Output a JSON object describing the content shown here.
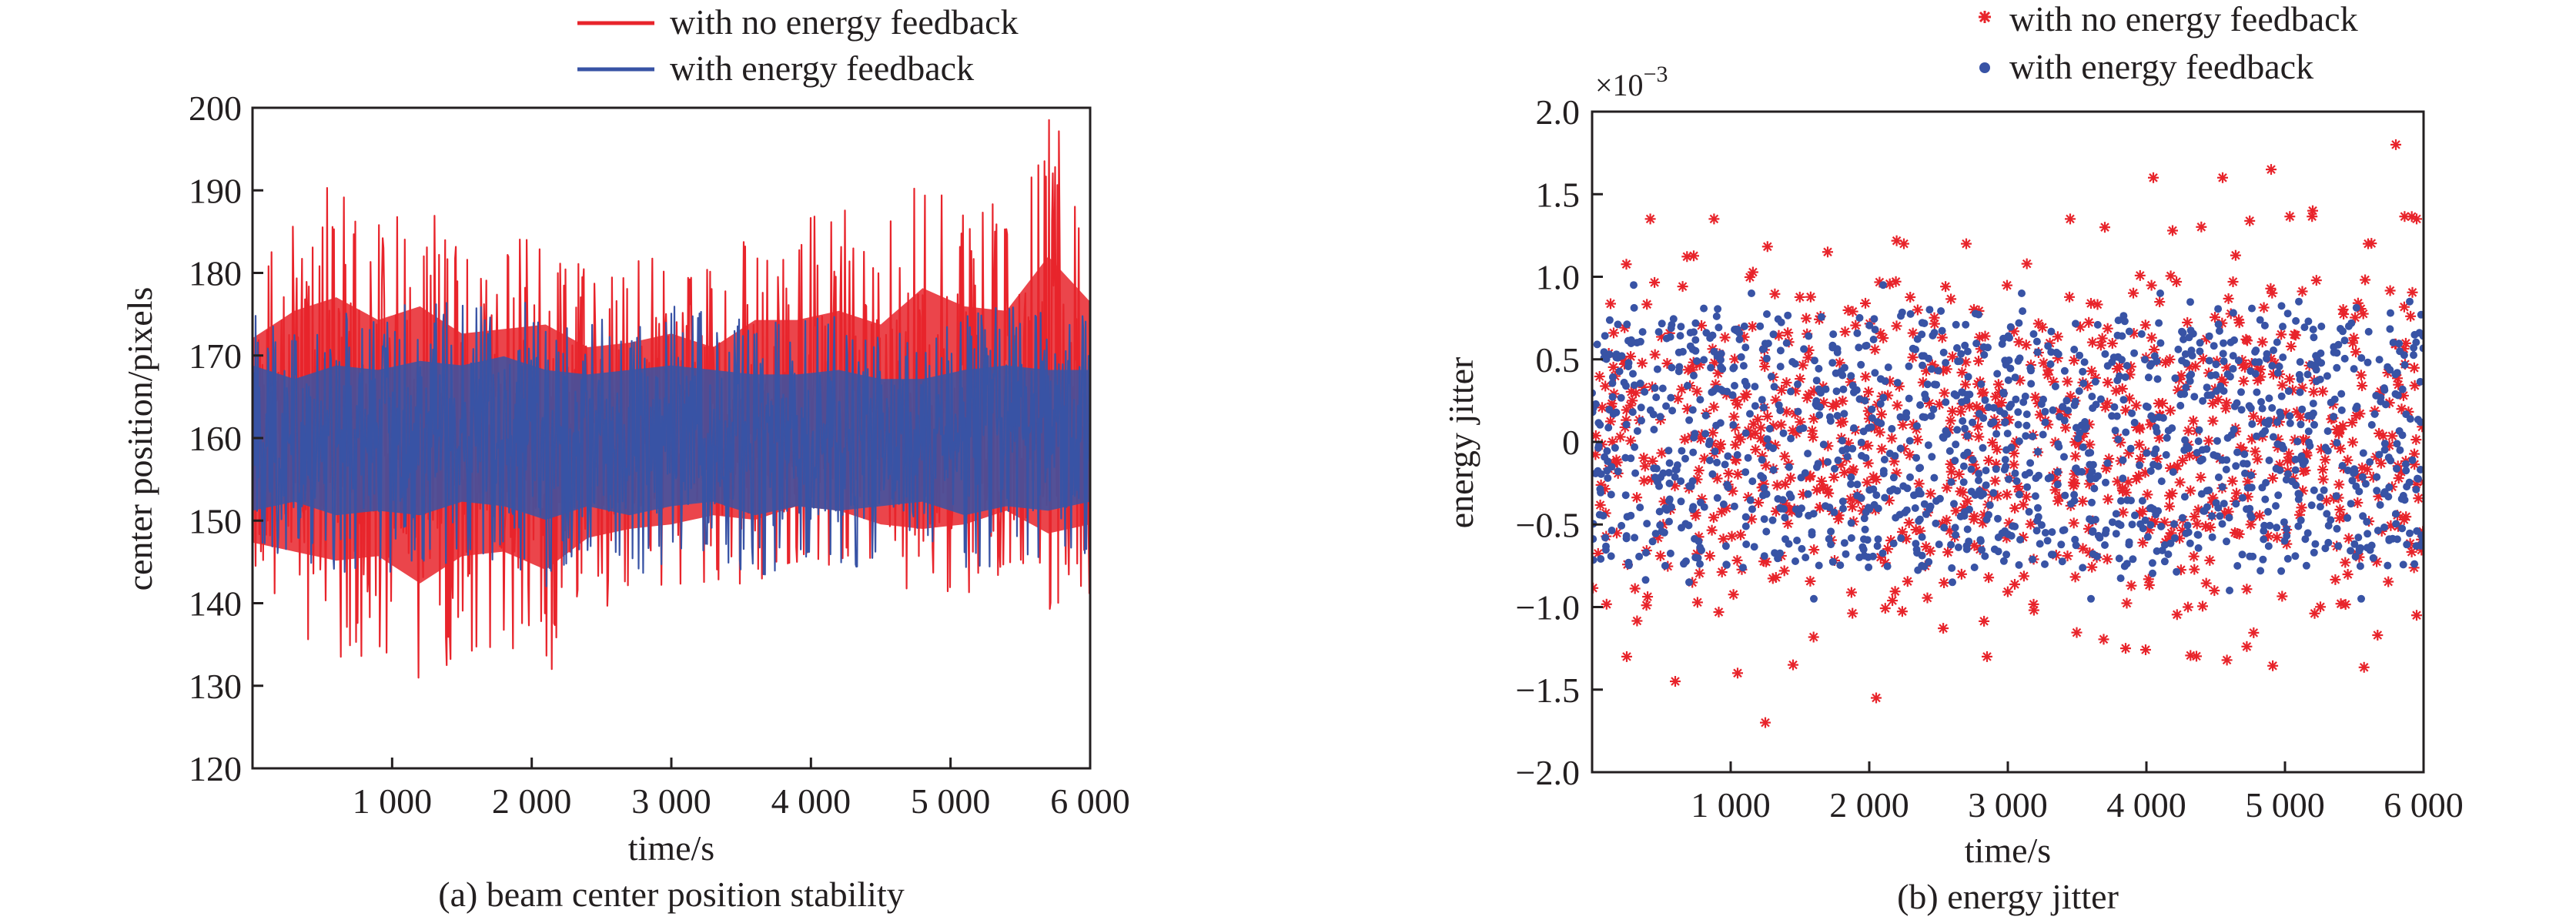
{
  "chart_data": [
    {
      "type": "line",
      "caption": "(a) beam center position stability",
      "xlabel": "time/s",
      "ylabel": "center position/pixels",
      "xlim": [
        0,
        6000
      ],
      "ylim": [
        120,
        200
      ],
      "x_ticks": [
        1000,
        2000,
        3000,
        4000,
        5000,
        6000
      ],
      "x_tick_labels": [
        "1 000",
        "2 000",
        "3 000",
        "4 000",
        "5 000",
        "6 000"
      ],
      "y_ticks": [
        120,
        130,
        140,
        150,
        160,
        170,
        180,
        190,
        200
      ],
      "y_tick_labels": [
        "120",
        "130",
        "140",
        "150",
        "160",
        "170",
        "180",
        "190",
        "200"
      ],
      "legend_position": "top-center",
      "series": [
        {
          "name": "with no energy feedback",
          "color": "#e8242b",
          "x": [
            0,
            300,
            600,
            900,
            1200,
            1500,
            1800,
            2100,
            2400,
            2700,
            3000,
            3300,
            3600,
            3900,
            4200,
            4500,
            4800,
            5100,
            5400,
            5700,
            6000
          ],
          "center": [
            160,
            160,
            160,
            160,
            160,
            160,
            160,
            160,
            160,
            160,
            160,
            160,
            160,
            160,
            160,
            160,
            160,
            160,
            160,
            160,
            160
          ],
          "max": [
            182,
            188,
            191,
            186,
            189,
            183,
            184,
            185,
            180,
            181,
            183,
            180,
            186,
            186,
            188,
            185,
            193,
            189,
            188,
            200,
            190
          ],
          "min": [
            137,
            135,
            133,
            134,
            128,
            134,
            135,
            131,
            138,
            140,
            141,
            143,
            142,
            145,
            144,
            141,
            140,
            141,
            144,
            139,
            141
          ]
        },
        {
          "name": "with energy feedback",
          "color": "#3853a5",
          "x": [
            0,
            300,
            600,
            900,
            1200,
            1500,
            1800,
            2100,
            2400,
            2700,
            3000,
            3300,
            3600,
            3900,
            4200,
            4500,
            4800,
            5100,
            5400,
            5700,
            6000
          ],
          "center": [
            160,
            160,
            160,
            160,
            160,
            160,
            160,
            160,
            160,
            160,
            160,
            160,
            160,
            160,
            160,
            160,
            160,
            160,
            160,
            160,
            160
          ],
          "max": [
            176,
            173,
            176,
            175,
            177,
            176,
            178,
            175,
            174,
            175,
            176,
            175,
            174,
            174,
            175,
            173,
            173,
            175,
            176,
            175,
            175
          ],
          "min": [
            144,
            146,
            143,
            144,
            143,
            146,
            145,
            142,
            145,
            143,
            145,
            146,
            143,
            145,
            144,
            145,
            146,
            143,
            145,
            144,
            146
          ]
        }
      ]
    },
    {
      "type": "scatter",
      "caption": "(b) energy jitter",
      "xlabel": "time/s",
      "ylabel": "energy jitter",
      "scale_label_base": "×10",
      "scale_label_exp": "−3",
      "xlim": [
        0,
        6000
      ],
      "ylim": [
        -2.0,
        2.0
      ],
      "x_ticks": [
        1000,
        2000,
        3000,
        4000,
        5000,
        6000
      ],
      "x_tick_labels": [
        "1 000",
        "2 000",
        "3 000",
        "4 000",
        "5 000",
        "6 000"
      ],
      "y_ticks": [
        -2.0,
        -1.5,
        -1.0,
        -0.5,
        0,
        0.5,
        1.0,
        1.5,
        2.0
      ],
      "y_tick_labels": [
        "−2.0",
        "−1.5",
        "−1.0",
        "−0.5",
        "0",
        "0.5",
        "1.0",
        "1.5",
        "2.0"
      ],
      "legend_position": "top-center",
      "series": [
        {
          "name": "with no energy feedback",
          "marker": "asterisk",
          "color": "#e8242b",
          "points": [
            [
              250,
              -1.3
            ],
            [
              420,
              1.35
            ],
            [
              600,
              -1.45
            ],
            [
              880,
              1.35
            ],
            [
              1050,
              -1.4
            ],
            [
              1250,
              -1.7
            ],
            [
              1450,
              -1.35
            ],
            [
              1700,
              1.15
            ],
            [
              2050,
              -1.55
            ],
            [
              2250,
              1.2
            ],
            [
              2700,
              1.2
            ],
            [
              2850,
              -1.3
            ],
            [
              3450,
              1.35
            ],
            [
              3700,
              1.3
            ],
            [
              3850,
              -1.25
            ],
            [
              4050,
              1.6
            ],
            [
              4300,
              -1.0
            ],
            [
              4550,
              1.6
            ],
            [
              4900,
              1.65
            ],
            [
              5200,
              1.4
            ],
            [
              5600,
              1.2
            ],
            [
              5800,
              1.8
            ],
            [
              5950,
              1.35
            ],
            [
              5950,
              -1.05
            ]
          ],
          "spread": [
            [
              0,
              1.0
            ],
            [
              1000,
              1.1
            ],
            [
              2000,
              1.2
            ],
            [
              3000,
              1.0
            ],
            [
              4000,
              1.2
            ],
            [
              5000,
              1.3
            ],
            [
              6000,
              1.3
            ]
          ]
        },
        {
          "name": "with energy feedback",
          "marker": "dot",
          "color": "#3853a5",
          "points": [
            [
              300,
              0.95
            ],
            [
              700,
              -0.85
            ],
            [
              1150,
              0.9
            ],
            [
              1600,
              -0.95
            ],
            [
              2100,
              0.95
            ],
            [
              2600,
              -0.85
            ],
            [
              3100,
              0.9
            ],
            [
              3600,
              -0.95
            ],
            [
              4100,
              0.9
            ],
            [
              4600,
              -0.9
            ],
            [
              5100,
              0.85
            ],
            [
              5550,
              -0.95
            ],
            [
              5900,
              0.85
            ]
          ],
          "spread": [
            [
              0,
              0.8
            ],
            [
              6000,
              0.8
            ]
          ]
        }
      ]
    }
  ]
}
